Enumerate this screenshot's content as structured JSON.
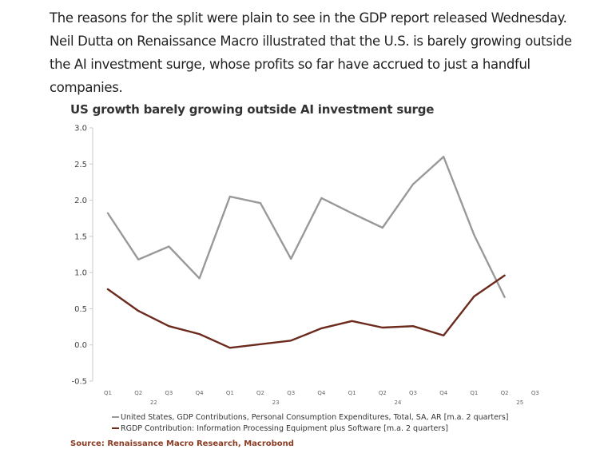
{
  "article": {
    "paragraph": "The reasons for the split were plain to see in the GDP report released Wednesday. Neil Dutta on Renaissance Macro illustrated that the U.S. is barely growing outside the AI investment surge, whose profits so far have accrued to just a handful companies."
  },
  "chart_data": {
    "type": "line",
    "title": "US growth barely growing outside AI investment surge",
    "xlabel": "",
    "ylabel": "",
    "ylim": [
      -0.5,
      3.0
    ],
    "yticks": [
      "3.0",
      "2.5",
      "2.0",
      "1.5",
      "1.0",
      "0.5",
      "0.0",
      "-0.5"
    ],
    "quarter_labels": [
      "Q1",
      "Q2",
      "Q3",
      "Q4",
      "Q1",
      "Q2",
      "Q3",
      "Q4",
      "Q1",
      "Q2",
      "Q3",
      "Q4",
      "Q1",
      "Q2",
      "Q3"
    ],
    "year_labels": [
      {
        "label": "22",
        "at_quarter_index": 1
      },
      {
        "label": "23",
        "at_quarter_index": 5
      },
      {
        "label": "24",
        "at_quarter_index": 9
      },
      {
        "label": "25",
        "at_quarter_index": 13
      }
    ],
    "grid": false,
    "legend_position": "bottom",
    "series": [
      {
        "name": "United States, GDP Contributions, Personal Consumption Expenditures, Total, SA, AR [m.a. 2 quarters]",
        "color": "#999999",
        "values": [
          1.82,
          1.18,
          1.36,
          0.92,
          2.05,
          1.96,
          1.19,
          2.03,
          1.82,
          1.62,
          2.22,
          2.6,
          1.52,
          0.66
        ]
      },
      {
        "name": "RGDP Contribution: Information Processing Equipment plus Software [m.a. 2 quarters]",
        "color": "#6b2a1c",
        "values": [
          0.77,
          0.47,
          0.26,
          0.15,
          -0.04,
          0.01,
          0.06,
          0.23,
          0.33,
          0.24,
          0.26,
          0.13,
          0.67,
          0.96
        ]
      }
    ]
  },
  "source": "Source: Renaissance Macro Research, Macrobond"
}
